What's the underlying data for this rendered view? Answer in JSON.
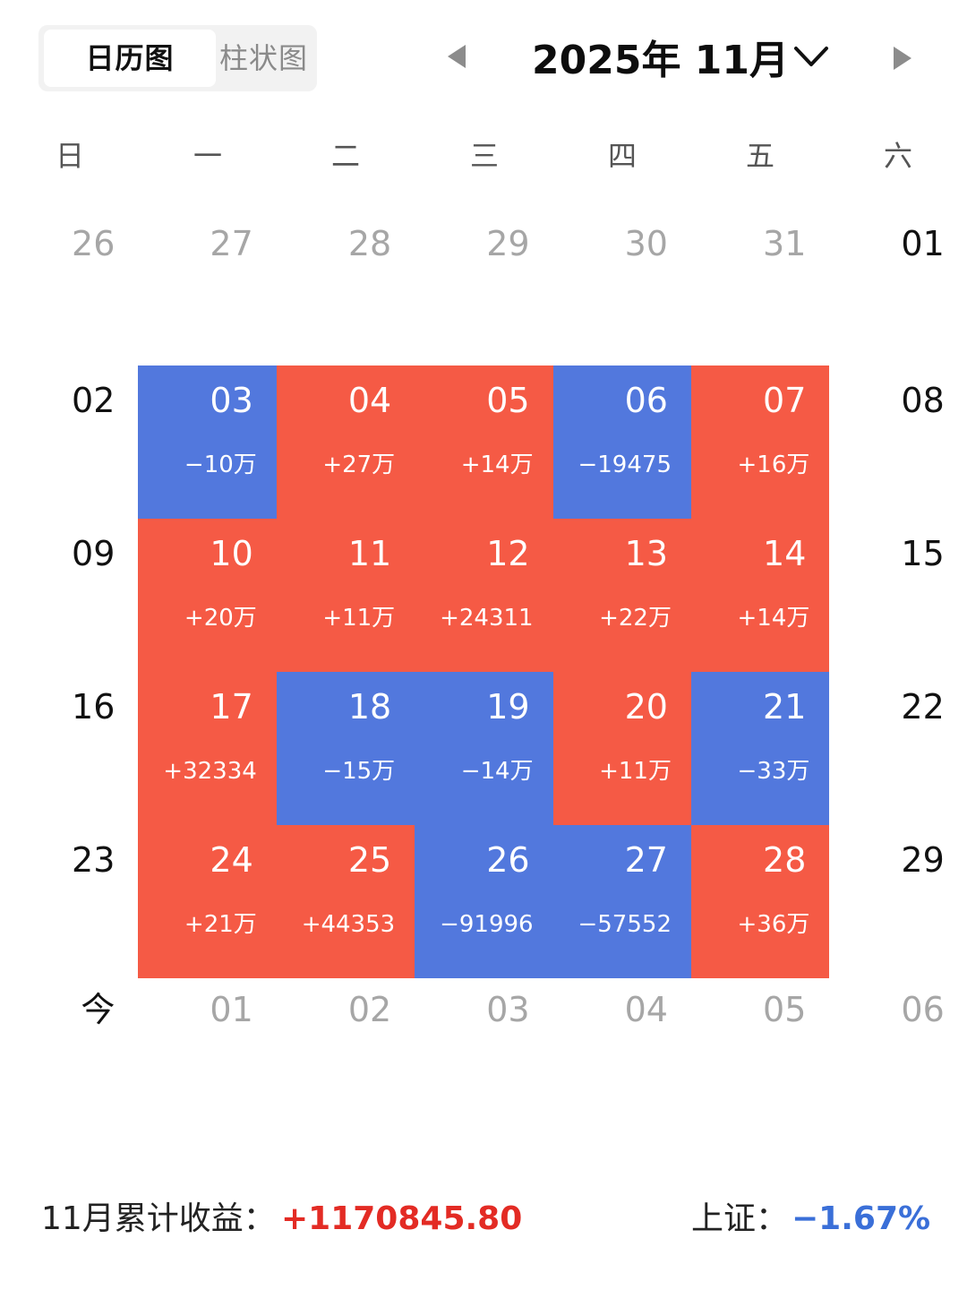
{
  "tabs": [
    {
      "label": "日历图",
      "active": true
    },
    {
      "label": "柱状图",
      "active": false
    }
  ],
  "header": {
    "month_title": "2025年 11月"
  },
  "weekdays": [
    "日",
    "一",
    "二",
    "三",
    "四",
    "五",
    "六"
  ],
  "colors": {
    "gain": "#f55a45",
    "loss": "#5278dd"
  },
  "weeks": [
    [
      {
        "day": "26",
        "state": "muted"
      },
      {
        "day": "27",
        "state": "muted"
      },
      {
        "day": "28",
        "state": "muted"
      },
      {
        "day": "29",
        "state": "muted"
      },
      {
        "day": "30",
        "state": "muted"
      },
      {
        "day": "31",
        "state": "muted"
      },
      {
        "day": "01",
        "state": "plain"
      }
    ],
    [
      {
        "day": "02",
        "state": "plain"
      },
      {
        "day": "03",
        "state": "loss",
        "value": "−10万"
      },
      {
        "day": "04",
        "state": "gain",
        "value": "+27万"
      },
      {
        "day": "05",
        "state": "gain",
        "value": "+14万"
      },
      {
        "day": "06",
        "state": "loss",
        "value": "−19475"
      },
      {
        "day": "07",
        "state": "gain",
        "value": "+16万"
      },
      {
        "day": "08",
        "state": "plain"
      }
    ],
    [
      {
        "day": "09",
        "state": "plain"
      },
      {
        "day": "10",
        "state": "gain",
        "value": "+20万"
      },
      {
        "day": "11",
        "state": "gain",
        "value": "+11万"
      },
      {
        "day": "12",
        "state": "gain",
        "value": "+24311"
      },
      {
        "day": "13",
        "state": "gain",
        "value": "+22万"
      },
      {
        "day": "14",
        "state": "gain",
        "value": "+14万"
      },
      {
        "day": "15",
        "state": "plain"
      }
    ],
    [
      {
        "day": "16",
        "state": "plain"
      },
      {
        "day": "17",
        "state": "gain",
        "value": "+32334"
      },
      {
        "day": "18",
        "state": "loss",
        "value": "−15万"
      },
      {
        "day": "19",
        "state": "loss",
        "value": "−14万"
      },
      {
        "day": "20",
        "state": "gain",
        "value": "+11万"
      },
      {
        "day": "21",
        "state": "loss",
        "value": "−33万"
      },
      {
        "day": "22",
        "state": "plain"
      }
    ],
    [
      {
        "day": "23",
        "state": "plain"
      },
      {
        "day": "24",
        "state": "gain",
        "value": "+21万"
      },
      {
        "day": "25",
        "state": "gain",
        "value": "+44353"
      },
      {
        "day": "26",
        "state": "loss",
        "value": "−91996"
      },
      {
        "day": "27",
        "state": "loss",
        "value": "−57552"
      },
      {
        "day": "28",
        "state": "gain",
        "value": "+36万"
      },
      {
        "day": "29",
        "state": "plain"
      }
    ],
    [
      {
        "day": "今",
        "state": "today"
      },
      {
        "day": "01",
        "state": "muted"
      },
      {
        "day": "02",
        "state": "muted"
      },
      {
        "day": "03",
        "state": "muted"
      },
      {
        "day": "04",
        "state": "muted"
      },
      {
        "day": "05",
        "state": "muted"
      },
      {
        "day": "06",
        "state": "muted"
      }
    ]
  ],
  "summary": {
    "label": "11月累计收益：",
    "value": "+1170845.80",
    "index_label": "上证：",
    "index_value": "−1.67%"
  }
}
